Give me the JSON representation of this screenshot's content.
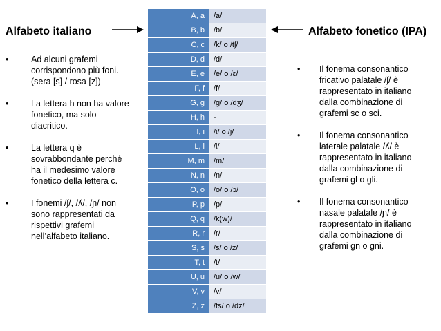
{
  "left": {
    "title": "Alfabeto italiano",
    "bullets": [
      [
        "Ad alcuni grafemi",
        "corrispondono più foni.",
        "(sera [s] / rosa [z])"
      ],
      [
        "La lettera h non ha valore",
        "fonetico, ma solo",
        "diacritico."
      ],
      [
        "La lettera q è",
        "sovrabbondante perché",
        "ha il medesimo valore",
        "fonetico della lettera c."
      ],
      [
        "I fonemi /ʃ/, /ʎ/, /ɲ/ non",
        "sono rappresentati da",
        "rispettivi grafemi",
        "nell’alfabeto italiano."
      ]
    ]
  },
  "right": {
    "title": "Alfabeto fonetico (IPA)",
    "bullets": [
      [
        "Il fonema consonantico",
        "fricativo palatale /ʃ/ è",
        "rappresentato in italiano",
        "dalla combinazione di",
        "grafemi sc o sci."
      ],
      [
        "Il fonema consonantico",
        "laterale palatale /ʎ/ è",
        "rappresentato in italiano",
        "dalla combinazione di",
        "grafemi gl o gli."
      ],
      [
        "Il fonema consonantico",
        "nasale palatale /ɲ/ è",
        "rappresentato in italiano",
        "dalla combinazione di",
        "grafemi gn o gni."
      ]
    ]
  },
  "table": {
    "rows": [
      {
        "letter": "A, a",
        "ipa": "/a/"
      },
      {
        "letter": "B, b",
        "ipa": "/b/"
      },
      {
        "letter": "C, c",
        "ipa": "/k/ o /tʃ/"
      },
      {
        "letter": "D, d",
        "ipa": "/d/"
      },
      {
        "letter": "E, e",
        "ipa": "/e/ o /ɛ/"
      },
      {
        "letter": "F, f",
        "ipa": "/f/"
      },
      {
        "letter": "G, g",
        "ipa": "/g/ o /dʒ/"
      },
      {
        "letter": "H, h",
        "ipa": "-"
      },
      {
        "letter": "I, i",
        "ipa": "/i/ o /j/"
      },
      {
        "letter": "L, l",
        "ipa": "/l/"
      },
      {
        "letter": "M, m",
        "ipa": "/m/"
      },
      {
        "letter": "N, n",
        "ipa": "/n/"
      },
      {
        "letter": "O, o",
        "ipa": "/o/ o /ɔ/"
      },
      {
        "letter": "P, p",
        "ipa": "/p/"
      },
      {
        "letter": "Q, q",
        "ipa": "/k(w)/"
      },
      {
        "letter": "R, r",
        "ipa": "/r/"
      },
      {
        "letter": "S, s",
        "ipa": "/s/ o /z/"
      },
      {
        "letter": "T, t",
        "ipa": "/t/"
      },
      {
        "letter": "U, u",
        "ipa": "/u/ o /w/"
      },
      {
        "letter": "V, v",
        "ipa": "/v/"
      },
      {
        "letter": "Z, z",
        "ipa": "/ts/ o /dz/"
      }
    ]
  },
  "colors": {
    "header_blue": "#4f81bd",
    "row_light": "#e9edf4",
    "row_mid": "#d0d8e8"
  },
  "icons": {
    "bullet": "bullet-dot",
    "arrow_left": "arrow-right-icon",
    "arrow_right": "arrow-left-icon"
  }
}
